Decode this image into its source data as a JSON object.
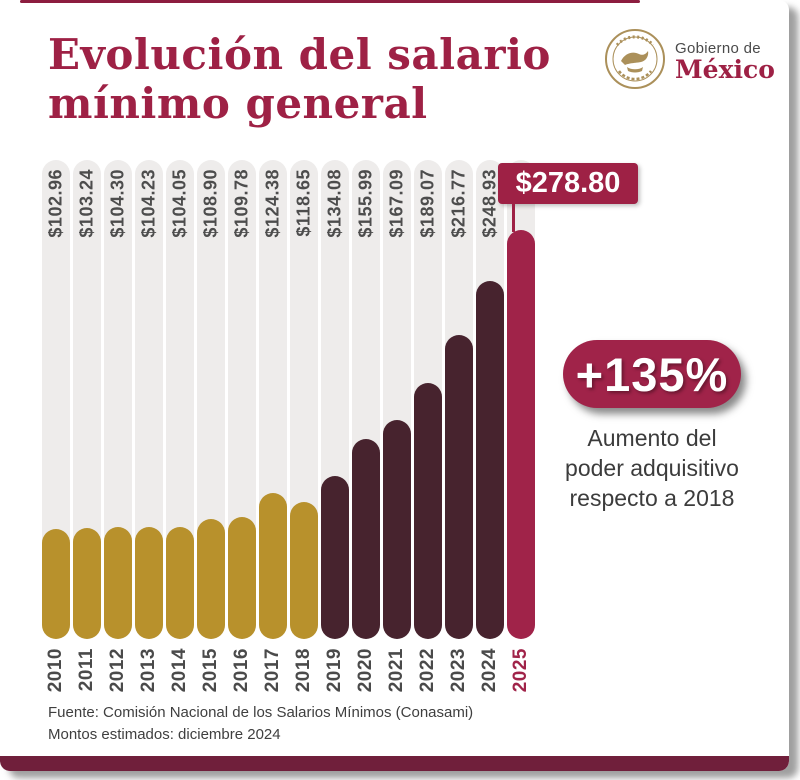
{
  "title": {
    "line1": "Evolución del salario",
    "line2": "mínimo general"
  },
  "brand": {
    "gobierno_line": "Gobierno de",
    "mexico_line": "México"
  },
  "chart_data": {
    "type": "bar",
    "title": "Evolución del salario mínimo general",
    "xlabel": "",
    "ylabel": "",
    "ylim": [
      0,
      278.8
    ],
    "grid": false,
    "legend": false,
    "categories": [
      "2010",
      "2011",
      "2012",
      "2013",
      "2014",
      "2015",
      "2016",
      "2017",
      "2018",
      "2019",
      "2020",
      "2021",
      "2022",
      "2023",
      "2024",
      "2025"
    ],
    "values": [
      102.96,
      103.24,
      104.3,
      104.23,
      104.05,
      108.9,
      109.78,
      124.38,
      118.65,
      134.08,
      155.99,
      167.09,
      189.07,
      216.77,
      248.93,
      278.8
    ],
    "display_labels": [
      "$102.96",
      "$103.24",
      "$104.30",
      "$104.23",
      "$104.05",
      "$108.90",
      "$109.78",
      "$124.38",
      "$118.65",
      "$134.08",
      "$155.99",
      "$167.09",
      "$189.07",
      "$216.77",
      "$248.93",
      "$278.80"
    ],
    "groups": [
      "gold",
      "gold",
      "gold",
      "gold",
      "gold",
      "gold",
      "gold",
      "gold",
      "gold",
      "maroon",
      "maroon",
      "maroon",
      "maroon",
      "maroon",
      "maroon",
      "crimson"
    ],
    "group_colors": {
      "gold": "#b8912c",
      "maroon": "#47232e",
      "crimson": "#a02349"
    },
    "track_color": "#eeeceb",
    "highlight_year": "2025"
  },
  "callout_2025": {
    "label": "$278.80"
  },
  "highlight": {
    "badge_label": "+135%",
    "caption_lines": [
      "Aumento del",
      "poder adquisitivo",
      "respecto a 2018"
    ]
  },
  "footer": {
    "source_line": "Fuente: Comisión Nacional de los Salarios Mínimos (Conasami)",
    "estimate_line": "Montos estimados: diciembre 2024"
  },
  "colors": {
    "primary_crimson": "#9e2145",
    "bar_crimson": "#a02349",
    "bar_gold": "#b8912c",
    "bar_maroon": "#47232e",
    "bottom_band": "#701f3b"
  }
}
